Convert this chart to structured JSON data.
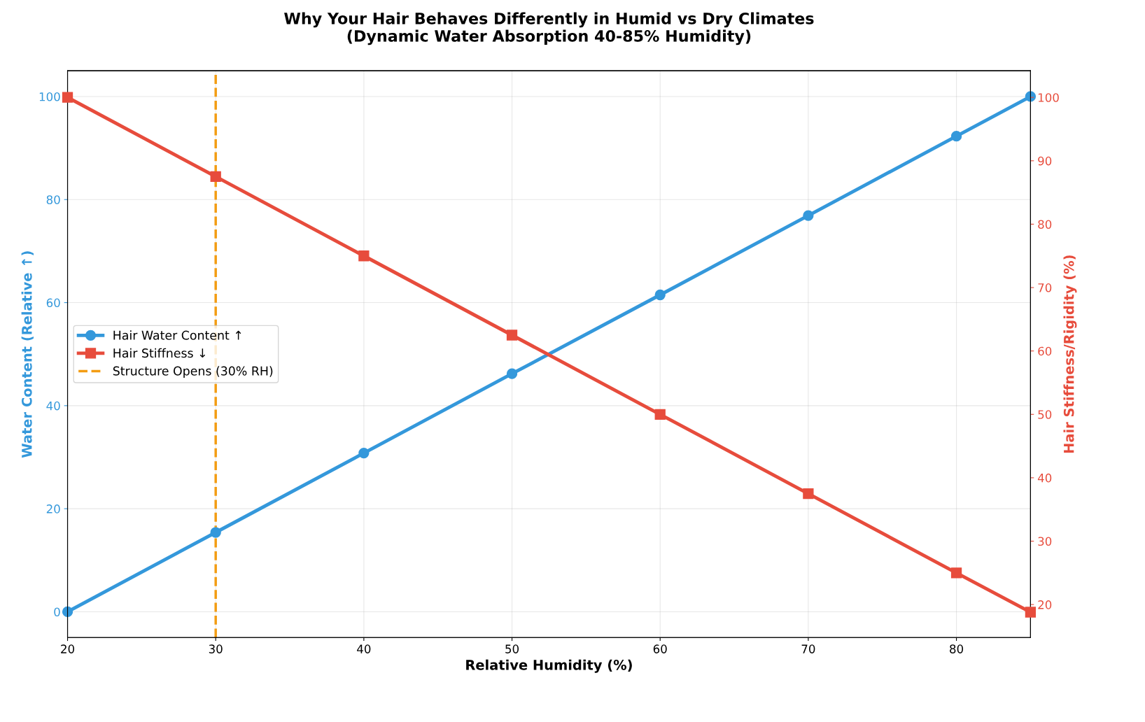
{
  "chart_data": {
    "type": "line",
    "title": "Why Your Hair Behaves Differently in Humid vs Dry Climates\n(Dynamic Water Absorption 40-85% Humidity)",
    "xlabel": "Relative Humidity (%)",
    "ylabel": "Water Content (Relative ↑)",
    "y2label": "Hair Stiffness/Rigidity (%)",
    "x": [
      20,
      30,
      40,
      50,
      60,
      70,
      80,
      85
    ],
    "series": [
      {
        "name": "Hair Water Content ↑",
        "color": "#3498db",
        "marker": "circle",
        "values": [
          0,
          15.4,
          30.8,
          46.2,
          61.5,
          76.9,
          92.3,
          100
        ]
      },
      {
        "name": "Hair Stiffness ↓",
        "color": "#e74c3c",
        "marker": "square",
        "axis": "y2",
        "values": [
          100,
          87.5,
          75,
          62.5,
          50,
          37.5,
          25,
          18.8
        ]
      }
    ],
    "ref_lines": [
      {
        "axis": "x",
        "value": 30,
        "label": "Structure Opens (30% RH)",
        "color": "#f39c12",
        "line_style": "dashed"
      }
    ],
    "xlim": [
      20,
      85
    ],
    "xticks": [
      20,
      30,
      40,
      50,
      60,
      70,
      80
    ],
    "ylim": [
      -5,
      105
    ],
    "yticks": [
      0,
      20,
      40,
      60,
      80,
      100
    ],
    "y2lim": [
      14.8,
      104.2
    ],
    "y2ticks": [
      20,
      30,
      40,
      50,
      60,
      70,
      80,
      90,
      100
    ],
    "grid": true,
    "legend": "center left",
    "line_style": "solid"
  }
}
